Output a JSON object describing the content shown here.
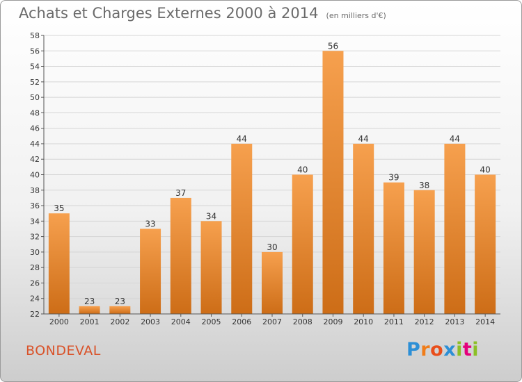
{
  "header": {
    "title": "Achats et Charges Externes 2000 à 2014",
    "unit": "(en milliers d'€)"
  },
  "footer": {
    "commune": "BONDEVAL",
    "logo_letters": [
      "P",
      "r",
      "o",
      "x",
      "i",
      "t",
      "i"
    ],
    "logo_colors": [
      "#2c8fd6",
      "#f07d1a",
      "#e94e1b",
      "#2c8fd6",
      "#8cbf26",
      "#e4007c",
      "#8cbf26"
    ]
  },
  "colors": {
    "bar_top": "#f6a04e",
    "bar_bottom": "#cd6d17",
    "grid": "#d5d5d5"
  },
  "chart_data": {
    "type": "bar",
    "title": "Achats et Charges Externes 2000 à 2014",
    "subtitle": "(en milliers d'€)",
    "xlabel": "",
    "ylabel": "",
    "categories": [
      "2000",
      "2001",
      "2002",
      "2003",
      "2004",
      "2005",
      "2006",
      "2007",
      "2008",
      "2009",
      "2010",
      "2011",
      "2012",
      "2013",
      "2014"
    ],
    "values": [
      35,
      23,
      23,
      33,
      37,
      34,
      44,
      30,
      40,
      56,
      44,
      39,
      38,
      44,
      40
    ],
    "ylim": [
      22,
      58
    ],
    "ytick_step": 2,
    "grid": true,
    "data_labels": true
  }
}
